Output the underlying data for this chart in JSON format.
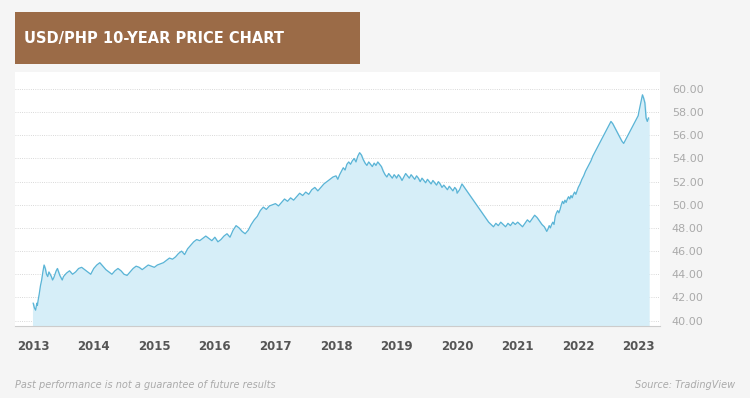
{
  "title": "USD/PHP 10-YEAR PRICE CHART",
  "title_bg_color": "#9b6b47",
  "title_text_color": "#ffffff",
  "background_color": "#f5f5f5",
  "chart_bg_color": "#ffffff",
  "line_color": "#5ab4d6",
  "fill_color": "#d6eef8",
  "ylabel_color": "#aaaaaa",
  "xlabel_color": "#555555",
  "grid_color": "#cccccc",
  "footnote_left": "Past performance is not a guarantee of future results",
  "footnote_right": "Source: TradingView",
  "ylim": [
    39.5,
    61.5
  ],
  "yticks": [
    40.0,
    42.0,
    44.0,
    46.0,
    48.0,
    50.0,
    52.0,
    54.0,
    56.0,
    58.0,
    60.0
  ],
  "xlim": [
    2012.7,
    2023.35
  ],
  "years": [
    2013,
    2014,
    2015,
    2016,
    2017,
    2018,
    2019,
    2020,
    2021,
    2022,
    2023
  ],
  "data_points": [
    [
      2013.0,
      41.5
    ],
    [
      2013.01,
      41.3
    ],
    [
      2013.02,
      41.1
    ],
    [
      2013.03,
      41.0
    ],
    [
      2013.04,
      40.9
    ],
    [
      2013.05,
      41.2
    ],
    [
      2013.06,
      41.5
    ],
    [
      2013.07,
      41.3
    ],
    [
      2013.08,
      41.7
    ],
    [
      2013.09,
      42.0
    ],
    [
      2013.1,
      42.3
    ],
    [
      2013.12,
      43.0
    ],
    [
      2013.14,
      43.5
    ],
    [
      2013.16,
      44.2
    ],
    [
      2013.18,
      44.8
    ],
    [
      2013.2,
      44.5
    ],
    [
      2013.22,
      44.0
    ],
    [
      2013.24,
      43.8
    ],
    [
      2013.26,
      44.2
    ],
    [
      2013.28,
      44.0
    ],
    [
      2013.3,
      43.8
    ],
    [
      2013.32,
      43.5
    ],
    [
      2013.34,
      43.7
    ],
    [
      2013.36,
      44.0
    ],
    [
      2013.38,
      44.3
    ],
    [
      2013.4,
      44.5
    ],
    [
      2013.42,
      44.2
    ],
    [
      2013.44,
      43.9
    ],
    [
      2013.46,
      43.7
    ],
    [
      2013.48,
      43.5
    ],
    [
      2013.5,
      43.8
    ],
    [
      2013.55,
      44.1
    ],
    [
      2013.6,
      44.3
    ],
    [
      2013.65,
      44.0
    ],
    [
      2013.7,
      44.2
    ],
    [
      2013.75,
      44.5
    ],
    [
      2013.8,
      44.6
    ],
    [
      2013.85,
      44.4
    ],
    [
      2013.9,
      44.2
    ],
    [
      2013.95,
      44.0
    ],
    [
      2014.0,
      44.5
    ],
    [
      2014.05,
      44.8
    ],
    [
      2014.1,
      45.0
    ],
    [
      2014.15,
      44.7
    ],
    [
      2014.2,
      44.4
    ],
    [
      2014.25,
      44.2
    ],
    [
      2014.3,
      44.0
    ],
    [
      2014.35,
      44.3
    ],
    [
      2014.4,
      44.5
    ],
    [
      2014.45,
      44.3
    ],
    [
      2014.5,
      44.0
    ],
    [
      2014.55,
      43.9
    ],
    [
      2014.6,
      44.2
    ],
    [
      2014.65,
      44.5
    ],
    [
      2014.7,
      44.7
    ],
    [
      2014.75,
      44.6
    ],
    [
      2014.8,
      44.4
    ],
    [
      2014.85,
      44.6
    ],
    [
      2014.9,
      44.8
    ],
    [
      2014.95,
      44.7
    ],
    [
      2015.0,
      44.6
    ],
    [
      2015.05,
      44.8
    ],
    [
      2015.1,
      44.9
    ],
    [
      2015.15,
      45.0
    ],
    [
      2015.2,
      45.2
    ],
    [
      2015.25,
      45.4
    ],
    [
      2015.3,
      45.3
    ],
    [
      2015.35,
      45.5
    ],
    [
      2015.4,
      45.8
    ],
    [
      2015.45,
      46.0
    ],
    [
      2015.5,
      45.7
    ],
    [
      2015.55,
      46.2
    ],
    [
      2015.6,
      46.5
    ],
    [
      2015.65,
      46.8
    ],
    [
      2015.7,
      47.0
    ],
    [
      2015.75,
      46.9
    ],
    [
      2015.8,
      47.1
    ],
    [
      2015.85,
      47.3
    ],
    [
      2015.9,
      47.1
    ],
    [
      2015.95,
      46.9
    ],
    [
      2016.0,
      47.2
    ],
    [
      2016.05,
      46.8
    ],
    [
      2016.1,
      47.0
    ],
    [
      2016.15,
      47.3
    ],
    [
      2016.2,
      47.5
    ],
    [
      2016.25,
      47.2
    ],
    [
      2016.3,
      47.8
    ],
    [
      2016.35,
      48.2
    ],
    [
      2016.4,
      48.0
    ],
    [
      2016.45,
      47.7
    ],
    [
      2016.5,
      47.5
    ],
    [
      2016.55,
      47.8
    ],
    [
      2016.6,
      48.3
    ],
    [
      2016.65,
      48.7
    ],
    [
      2016.7,
      49.0
    ],
    [
      2016.75,
      49.5
    ],
    [
      2016.8,
      49.8
    ],
    [
      2016.85,
      49.6
    ],
    [
      2016.9,
      49.9
    ],
    [
      2016.95,
      50.0
    ],
    [
      2017.0,
      50.1
    ],
    [
      2017.05,
      49.9
    ],
    [
      2017.1,
      50.2
    ],
    [
      2017.15,
      50.5
    ],
    [
      2017.2,
      50.3
    ],
    [
      2017.25,
      50.6
    ],
    [
      2017.3,
      50.4
    ],
    [
      2017.35,
      50.7
    ],
    [
      2017.4,
      51.0
    ],
    [
      2017.45,
      50.8
    ],
    [
      2017.5,
      51.1
    ],
    [
      2017.55,
      50.9
    ],
    [
      2017.6,
      51.3
    ],
    [
      2017.65,
      51.5
    ],
    [
      2017.7,
      51.2
    ],
    [
      2017.75,
      51.5
    ],
    [
      2017.8,
      51.8
    ],
    [
      2017.85,
      52.0
    ],
    [
      2017.9,
      52.2
    ],
    [
      2017.95,
      52.4
    ],
    [
      2018.0,
      52.5
    ],
    [
      2018.03,
      52.2
    ],
    [
      2018.06,
      52.6
    ],
    [
      2018.09,
      52.9
    ],
    [
      2018.12,
      53.2
    ],
    [
      2018.15,
      53.0
    ],
    [
      2018.18,
      53.5
    ],
    [
      2018.21,
      53.7
    ],
    [
      2018.24,
      53.5
    ],
    [
      2018.27,
      53.8
    ],
    [
      2018.3,
      54.0
    ],
    [
      2018.33,
      53.7
    ],
    [
      2018.36,
      54.2
    ],
    [
      2018.39,
      54.5
    ],
    [
      2018.42,
      54.3
    ],
    [
      2018.45,
      53.9
    ],
    [
      2018.48,
      53.6
    ],
    [
      2018.51,
      53.4
    ],
    [
      2018.54,
      53.7
    ],
    [
      2018.57,
      53.5
    ],
    [
      2018.6,
      53.3
    ],
    [
      2018.63,
      53.6
    ],
    [
      2018.66,
      53.4
    ],
    [
      2018.69,
      53.7
    ],
    [
      2018.72,
      53.5
    ],
    [
      2018.75,
      53.3
    ],
    [
      2018.78,
      52.9
    ],
    [
      2018.81,
      52.6
    ],
    [
      2018.84,
      52.4
    ],
    [
      2018.87,
      52.7
    ],
    [
      2018.9,
      52.5
    ],
    [
      2018.93,
      52.3
    ],
    [
      2018.96,
      52.6
    ],
    [
      2018.99,
      52.4
    ],
    [
      2019.0,
      52.3
    ],
    [
      2019.03,
      52.6
    ],
    [
      2019.06,
      52.4
    ],
    [
      2019.09,
      52.1
    ],
    [
      2019.12,
      52.4
    ],
    [
      2019.15,
      52.7
    ],
    [
      2019.18,
      52.5
    ],
    [
      2019.21,
      52.3
    ],
    [
      2019.24,
      52.6
    ],
    [
      2019.27,
      52.4
    ],
    [
      2019.3,
      52.2
    ],
    [
      2019.33,
      52.5
    ],
    [
      2019.36,
      52.3
    ],
    [
      2019.39,
      52.0
    ],
    [
      2019.42,
      52.3
    ],
    [
      2019.45,
      52.1
    ],
    [
      2019.48,
      51.9
    ],
    [
      2019.51,
      52.2
    ],
    [
      2019.54,
      52.0
    ],
    [
      2019.57,
      51.8
    ],
    [
      2019.6,
      52.1
    ],
    [
      2019.63,
      51.9
    ],
    [
      2019.66,
      51.7
    ],
    [
      2019.69,
      52.0
    ],
    [
      2019.72,
      51.8
    ],
    [
      2019.75,
      51.5
    ],
    [
      2019.78,
      51.7
    ],
    [
      2019.81,
      51.5
    ],
    [
      2019.84,
      51.3
    ],
    [
      2019.87,
      51.6
    ],
    [
      2019.9,
      51.4
    ],
    [
      2019.93,
      51.2
    ],
    [
      2019.96,
      51.5
    ],
    [
      2019.99,
      51.3
    ],
    [
      2020.0,
      51.0
    ],
    [
      2020.04,
      51.3
    ],
    [
      2020.08,
      51.8
    ],
    [
      2020.12,
      51.5
    ],
    [
      2020.16,
      51.2
    ],
    [
      2020.2,
      50.9
    ],
    [
      2020.24,
      50.6
    ],
    [
      2020.28,
      50.3
    ],
    [
      2020.32,
      50.0
    ],
    [
      2020.36,
      49.7
    ],
    [
      2020.4,
      49.4
    ],
    [
      2020.44,
      49.1
    ],
    [
      2020.48,
      48.8
    ],
    [
      2020.52,
      48.5
    ],
    [
      2020.56,
      48.3
    ],
    [
      2020.6,
      48.1
    ],
    [
      2020.64,
      48.4
    ],
    [
      2020.68,
      48.2
    ],
    [
      2020.72,
      48.5
    ],
    [
      2020.76,
      48.3
    ],
    [
      2020.8,
      48.1
    ],
    [
      2020.84,
      48.4
    ],
    [
      2020.88,
      48.2
    ],
    [
      2020.92,
      48.5
    ],
    [
      2020.96,
      48.3
    ],
    [
      2021.0,
      48.5
    ],
    [
      2021.04,
      48.3
    ],
    [
      2021.08,
      48.1
    ],
    [
      2021.12,
      48.4
    ],
    [
      2021.16,
      48.7
    ],
    [
      2021.2,
      48.5
    ],
    [
      2021.24,
      48.8
    ],
    [
      2021.28,
      49.1
    ],
    [
      2021.32,
      48.9
    ],
    [
      2021.36,
      48.6
    ],
    [
      2021.4,
      48.3
    ],
    [
      2021.44,
      48.1
    ],
    [
      2021.46,
      47.9
    ],
    [
      2021.48,
      47.7
    ],
    [
      2021.5,
      47.9
    ],
    [
      2021.52,
      48.2
    ],
    [
      2021.54,
      48.0
    ],
    [
      2021.56,
      48.3
    ],
    [
      2021.58,
      48.5
    ],
    [
      2021.6,
      48.3
    ],
    [
      2021.62,
      49.0
    ],
    [
      2021.64,
      49.3
    ],
    [
      2021.66,
      49.5
    ],
    [
      2021.68,
      49.3
    ],
    [
      2021.7,
      49.6
    ],
    [
      2021.72,
      50.0
    ],
    [
      2021.74,
      50.3
    ],
    [
      2021.76,
      50.1
    ],
    [
      2021.78,
      50.4
    ],
    [
      2021.8,
      50.2
    ],
    [
      2021.82,
      50.5
    ],
    [
      2021.84,
      50.7
    ],
    [
      2021.86,
      50.5
    ],
    [
      2021.88,
      50.8
    ],
    [
      2021.9,
      50.6
    ],
    [
      2021.92,
      50.9
    ],
    [
      2021.94,
      51.1
    ],
    [
      2021.96,
      50.9
    ],
    [
      2021.98,
      51.2
    ],
    [
      2022.0,
      51.5
    ],
    [
      2022.03,
      51.8
    ],
    [
      2022.06,
      52.2
    ],
    [
      2022.09,
      52.5
    ],
    [
      2022.12,
      52.9
    ],
    [
      2022.15,
      53.2
    ],
    [
      2022.18,
      53.5
    ],
    [
      2022.21,
      53.8
    ],
    [
      2022.24,
      54.2
    ],
    [
      2022.27,
      54.5
    ],
    [
      2022.3,
      54.8
    ],
    [
      2022.33,
      55.1
    ],
    [
      2022.36,
      55.4
    ],
    [
      2022.39,
      55.7
    ],
    [
      2022.42,
      56.0
    ],
    [
      2022.45,
      56.3
    ],
    [
      2022.48,
      56.6
    ],
    [
      2022.51,
      56.9
    ],
    [
      2022.54,
      57.2
    ],
    [
      2022.57,
      57.0
    ],
    [
      2022.6,
      56.7
    ],
    [
      2022.63,
      56.4
    ],
    [
      2022.66,
      56.1
    ],
    [
      2022.69,
      55.8
    ],
    [
      2022.72,
      55.5
    ],
    [
      2022.75,
      55.3
    ],
    [
      2022.78,
      55.6
    ],
    [
      2022.81,
      55.9
    ],
    [
      2022.84,
      56.2
    ],
    [
      2022.87,
      56.5
    ],
    [
      2022.9,
      56.8
    ],
    [
      2022.93,
      57.1
    ],
    [
      2022.96,
      57.4
    ],
    [
      2022.99,
      57.7
    ],
    [
      2023.0,
      58.0
    ],
    [
      2023.02,
      58.5
    ],
    [
      2023.04,
      59.0
    ],
    [
      2023.06,
      59.5
    ],
    [
      2023.08,
      59.2
    ],
    [
      2023.1,
      58.8
    ],
    [
      2023.12,
      57.5
    ],
    [
      2023.14,
      57.2
    ],
    [
      2023.16,
      57.5
    ]
  ]
}
